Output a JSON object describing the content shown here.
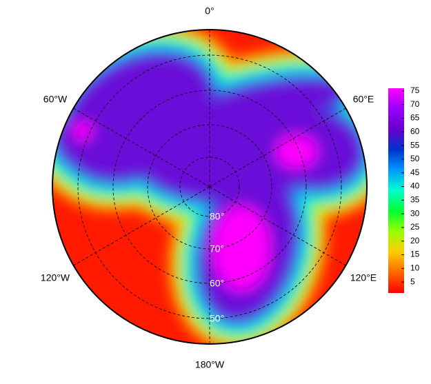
{
  "map": {
    "projection": "south polar stereographic",
    "longitude_labels": [
      "0°",
      "60°W",
      "60°E",
      "120°W",
      "120°E",
      "180°W"
    ],
    "latitude_labels": [
      "80°",
      "70°",
      "60°",
      "50°"
    ]
  },
  "colorbar": {
    "range": [
      1,
      76
    ],
    "ticks": [
      5,
      10,
      15,
      20,
      25,
      30,
      35,
      40,
      45,
      50,
      55,
      60,
      65,
      70,
      75
    ],
    "colors": [
      "#ff0000",
      "#ff6600",
      "#ffcc00",
      "#99ff00",
      "#00ff33",
      "#00ffcc",
      "#0099ff",
      "#0033cc",
      "#6600cc",
      "#9900ff",
      "#ff00ff"
    ]
  }
}
